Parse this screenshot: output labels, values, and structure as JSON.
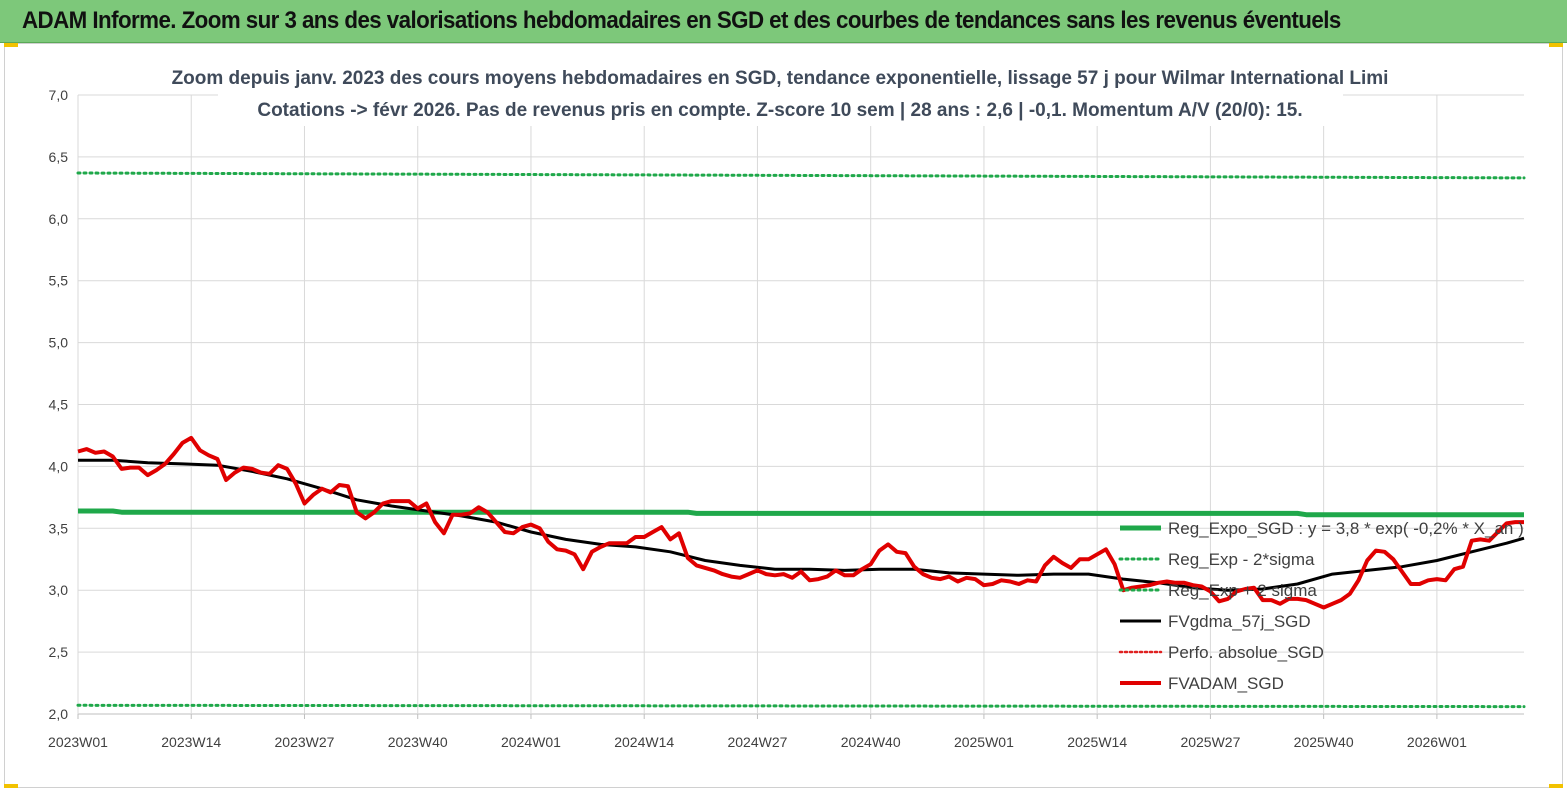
{
  "header": {
    "title": "ADAM Informe. Zoom sur 3 ans des valorisations hebdomadaires en SGD et des courbes de tendances sans les revenus éventuels"
  },
  "colors": {
    "banner": "#7dc87a",
    "reg_expo": "#1fa84a",
    "sigma": "#1fa84a",
    "fvgdma": "#000000",
    "perfo": "#e02020",
    "fvadam": "#e00000",
    "grid": "#d9d9d9"
  },
  "chart_data": {
    "type": "line",
    "title_line1": "Zoom depuis janv. 2023 des cours moyens  hebdomadaires en SGD, tendance exponentielle, lissage 57 j pour Wilmar International Limi",
    "title_line2": "Cotations -> févr 2026.  Pas de revenus pris en compte. Z-score 10 sem  | 28 ans : 2,6 | -0,1. Momentum A/V (20/0): 15.",
    "ylim": [
      2.0,
      7.0
    ],
    "y_ticks": [
      "2,0",
      "2,5",
      "3,0",
      "3,5",
      "4,0",
      "4,5",
      "5,0",
      "5,5",
      "6,0",
      "6,5",
      "7,0"
    ],
    "x_ticks": [
      "2023W01",
      "2023W14",
      "2023W27",
      "2023W40",
      "2024W01",
      "2024W14",
      "2024W27",
      "2024W40",
      "2025W01",
      "2025W14",
      "2025W27",
      "2025W40",
      "2026W01"
    ],
    "x_range_weeks": [
      0,
      166
    ],
    "grid": true,
    "legend_position": "bottom-right",
    "series": [
      {
        "name": "Reg_Expo_SGD : y = 3,8 * exp( -0,2% *  X_an )",
        "style": "solid-thick",
        "x": [
          0,
          4,
          5,
          30,
          31,
          70,
          71,
          110,
          111,
          140,
          141,
          166
        ],
        "y": [
          3.64,
          3.64,
          3.63,
          3.63,
          3.63,
          3.63,
          3.62,
          3.62,
          3.62,
          3.62,
          3.61,
          3.61
        ]
      },
      {
        "name": "Reg_Exp - 2*sigma",
        "style": "dotted",
        "x": [
          0,
          166
        ],
        "y": [
          2.07,
          2.06
        ]
      },
      {
        "name": "Reg_Exp + 2 sigma",
        "style": "dotted",
        "x": [
          0,
          166
        ],
        "y": [
          6.37,
          6.33
        ]
      },
      {
        "name": "FVgdma_57j_SGD",
        "style": "solid",
        "x": [
          0,
          4,
          8,
          12,
          16,
          20,
          24,
          28,
          32,
          36,
          40,
          44,
          48,
          52,
          56,
          60,
          64,
          68,
          72,
          76,
          80,
          84,
          88,
          92,
          96,
          100,
          104,
          108,
          112,
          116,
          120,
          124,
          128,
          132,
          136,
          140,
          144,
          148,
          152,
          156,
          160,
          164,
          166
        ],
        "y": [
          4.05,
          4.05,
          4.03,
          4.02,
          4.01,
          3.96,
          3.9,
          3.82,
          3.73,
          3.68,
          3.64,
          3.6,
          3.55,
          3.47,
          3.41,
          3.37,
          3.35,
          3.31,
          3.24,
          3.2,
          3.17,
          3.17,
          3.16,
          3.17,
          3.17,
          3.14,
          3.13,
          3.12,
          3.13,
          3.13,
          3.09,
          3.06,
          3.02,
          3.0,
          3.01,
          3.05,
          3.13,
          3.16,
          3.19,
          3.24,
          3.31,
          3.38,
          3.42
        ]
      },
      {
        "name": "Perfo. absolue_SGD",
        "style": "dotted",
        "x": [],
        "y": []
      },
      {
        "name": "FVADAM_SGD",
        "style": "solid-thick",
        "x": [
          0,
          1,
          2,
          3,
          4,
          5,
          6,
          7,
          8,
          9,
          10,
          11,
          12,
          13,
          14,
          15,
          16,
          17,
          18,
          19,
          20,
          21,
          22,
          23,
          24,
          25,
          26,
          27,
          28,
          29,
          30,
          31,
          32,
          33,
          34,
          35,
          36,
          37,
          38,
          39,
          40,
          41,
          42,
          43,
          44,
          45,
          46,
          47,
          48,
          49,
          50,
          51,
          52,
          53,
          54,
          55,
          56,
          57,
          58,
          59,
          60,
          61,
          62,
          63,
          64,
          65,
          66,
          67,
          68,
          69,
          70,
          71,
          72,
          73,
          74,
          75,
          76,
          77,
          78,
          79,
          80,
          81,
          82,
          83,
          84,
          85,
          86,
          87,
          88,
          89,
          90,
          91,
          92,
          93,
          94,
          95,
          96,
          97,
          98,
          99,
          100,
          101,
          102,
          103,
          104,
          105,
          106,
          107,
          108,
          109,
          110,
          111,
          112,
          113,
          114,
          115,
          116,
          117,
          118,
          119,
          120,
          121,
          122,
          123,
          124,
          125,
          126,
          127,
          128,
          129,
          130,
          131,
          132,
          133,
          134,
          135,
          136,
          137,
          138,
          139,
          140,
          141,
          142,
          143,
          144,
          145,
          146,
          147,
          148,
          149,
          150,
          151,
          152,
          153,
          154,
          155,
          156,
          157,
          158,
          159,
          160,
          161,
          162,
          163,
          164,
          165,
          166
        ],
        "y": [
          4.12,
          4.14,
          4.11,
          4.12,
          4.08,
          3.98,
          3.99,
          3.99,
          3.93,
          3.97,
          4.02,
          4.1,
          4.19,
          4.23,
          4.13,
          4.09,
          4.06,
          3.89,
          3.95,
          3.99,
          3.98,
          3.95,
          3.94,
          4.01,
          3.98,
          3.86,
          3.7,
          3.77,
          3.82,
          3.79,
          3.85,
          3.84,
          3.63,
          3.58,
          3.63,
          3.7,
          3.72,
          3.72,
          3.72,
          3.66,
          3.7,
          3.55,
          3.46,
          3.61,
          3.61,
          3.62,
          3.67,
          3.63,
          3.55,
          3.47,
          3.46,
          3.51,
          3.53,
          3.5,
          3.39,
          3.33,
          3.32,
          3.29,
          3.17,
          3.31,
          3.35,
          3.38,
          3.38,
          3.38,
          3.43,
          3.43,
          3.47,
          3.51,
          3.41,
          3.46,
          3.26,
          3.2,
          3.18,
          3.16,
          3.13,
          3.11,
          3.1,
          3.13,
          3.16,
          3.13,
          3.12,
          3.13,
          3.1,
          3.15,
          3.08,
          3.09,
          3.11,
          3.16,
          3.12,
          3.12,
          3.17,
          3.21,
          3.32,
          3.37,
          3.31,
          3.3,
          3.19,
          3.13,
          3.1,
          3.09,
          3.11,
          3.07,
          3.1,
          3.09,
          3.04,
          3.05,
          3.08,
          3.07,
          3.05,
          3.08,
          3.07,
          3.2,
          3.27,
          3.22,
          3.18,
          3.25,
          3.25,
          3.29,
          3.33,
          3.21,
          3.0,
          3.02,
          3.03,
          3.04,
          3.06,
          3.07,
          3.06,
          3.06,
          3.04,
          3.03,
          2.99,
          2.91,
          2.93,
          2.99,
          3.01,
          3.02,
          2.92,
          2.92,
          2.89,
          2.93,
          2.93,
          2.92,
          2.89,
          2.86,
          2.89,
          2.92,
          2.97,
          3.08,
          3.24,
          3.32,
          3.31,
          3.25,
          3.15,
          3.05,
          3.05,
          3.08,
          3.09,
          3.08,
          3.17,
          3.19,
          3.4,
          3.41,
          3.4,
          3.47,
          3.54,
          3.55,
          3.55
        ]
      }
    ]
  }
}
